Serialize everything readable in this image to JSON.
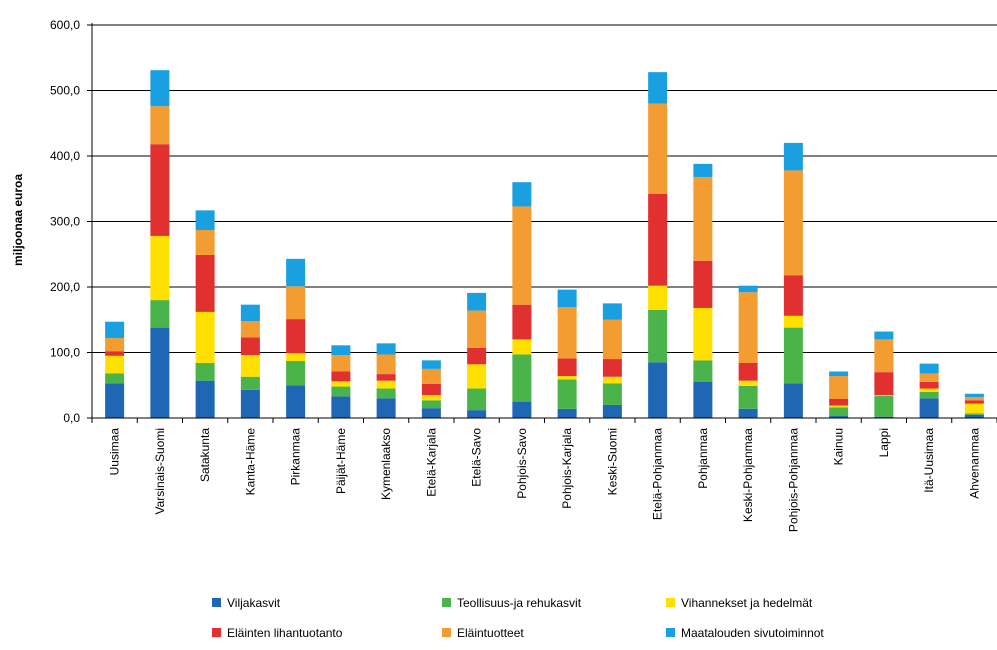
{
  "chart_data": {
    "type": "bar",
    "stacked": true,
    "ylabel": "miljoonaa euroa",
    "ylim": [
      0,
      600
    ],
    "yticks": [
      "0,0",
      "100,0",
      "200,0",
      "300,0",
      "400,0",
      "500,0",
      "600,0"
    ],
    "grid": true,
    "legend_position": "bottom",
    "categories": [
      "Uusimaa",
      "Varsinais-Suomi",
      "Satakunta",
      "Kanta-Häme",
      "Pirkanmaa",
      "Päijät-Häme",
      "Kymenlaakso",
      "Etelä-Karjala",
      "Etelä-Savo",
      "Pohjois-Savo",
      "Pohjois-Karjala",
      "Keski-Suomi",
      "Etelä-Pohjanmaa",
      "Pohjanmaa",
      "Keski-Pohjanmaa",
      "Pohjois-Pohjanmaa",
      "Kainuu",
      "Lappi",
      "Itä-Uusimaa",
      "Ahvenanmaa"
    ],
    "series": [
      {
        "name": "Viljakasvit",
        "color": "#1f66b5",
        "values": [
          53,
          138,
          57,
          43,
          50,
          33,
          30,
          15,
          12,
          25,
          14,
          20,
          85,
          55,
          14,
          53,
          3,
          2,
          30,
          5
        ]
      },
      {
        "name": "Teollisuus-ja rehukasvit",
        "color": "#4ab34a",
        "values": [
          15,
          42,
          27,
          20,
          37,
          15,
          15,
          12,
          33,
          72,
          45,
          33,
          80,
          33,
          35,
          85,
          13,
          32,
          10,
          2
        ]
      },
      {
        "name": "Vihannekset ja hedelmät",
        "color": "#ffe000",
        "values": [
          27,
          98,
          78,
          33,
          12,
          8,
          12,
          8,
          37,
          23,
          5,
          10,
          37,
          80,
          8,
          18,
          3,
          1,
          5,
          15
        ]
      },
      {
        "name": "Eläinten lihantuotanto",
        "color": "#e03030",
        "values": [
          7,
          140,
          87,
          27,
          52,
          15,
          10,
          17,
          25,
          53,
          27,
          27,
          140,
          72,
          27,
          62,
          10,
          35,
          10,
          5
        ]
      },
      {
        "name": "Eläintuotteet",
        "color": "#f39c32",
        "values": [
          20,
          58,
          38,
          25,
          50,
          25,
          30,
          23,
          57,
          150,
          78,
          60,
          138,
          128,
          108,
          160,
          35,
          50,
          13,
          5
        ]
      },
      {
        "name": "Maatalouden sivutoiminnot",
        "color": "#1aa0e0",
        "values": [
          25,
          55,
          30,
          25,
          42,
          15,
          17,
          13,
          27,
          37,
          27,
          25,
          48,
          20,
          10,
          42,
          7,
          12,
          15,
          5
        ]
      }
    ]
  }
}
